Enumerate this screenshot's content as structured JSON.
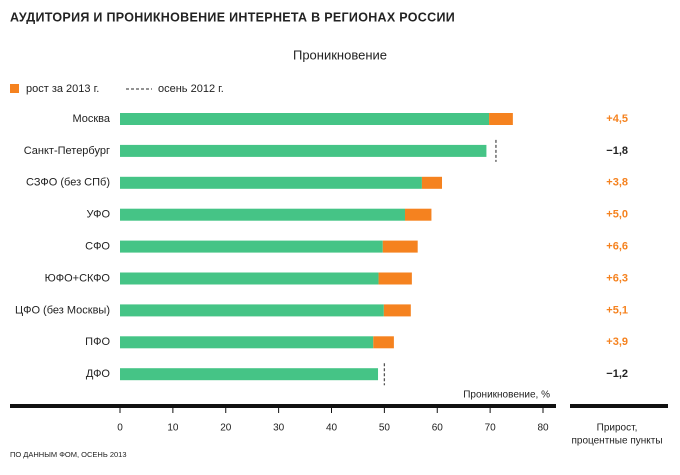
{
  "chart_data": {
    "type": "bar",
    "title": "АУДИТОРИЯ И ПРОНИКНОВЕНИЕ ИНТЕРНЕТА В РЕГИОНАХ РОССИИ",
    "subtitle": "Проникновение",
    "categories": [
      "Москва",
      "Санкт-Петербург",
      "СЗФО (без СПб)",
      "УФО",
      "СФО",
      "ЮФО+СКФО",
      "ЦФО (без Москвы)",
      "ПФО",
      "ДФО"
    ],
    "values": [
      69.8,
      69.3,
      57.1,
      53.9,
      49.7,
      48.9,
      49.9,
      47.9,
      48.8
    ],
    "color": "#45c486",
    "series": [
      {
        "name": "рост за 2013 г.",
        "color": "#f5821f",
        "values": [
          4.5,
          -1.8,
          3.8,
          5.0,
          6.6,
          6.3,
          5.1,
          3.9,
          -1.2
        ],
        "value_labels": [
          "+4,5",
          "−1,8",
          "+3,8",
          "+5,0",
          "+6,6",
          "+6,3",
          "+5,1",
          "+3,9",
          "−1,2"
        ]
      }
    ],
    "marker": {
      "name": "осень 2012 г.",
      "color": "#555555"
    },
    "x_label": "Проникновение, %",
    "column_label": [
      "Прирост,",
      "процентные пункты"
    ],
    "source": "ПО ДАННЫМ ФОМ, ОСЕНЬ 2013",
    "xlim": [
      0,
      80
    ],
    "xticks": [
      0,
      10,
      20,
      30,
      40,
      50,
      60,
      70,
      80
    ],
    "grid": false
  }
}
